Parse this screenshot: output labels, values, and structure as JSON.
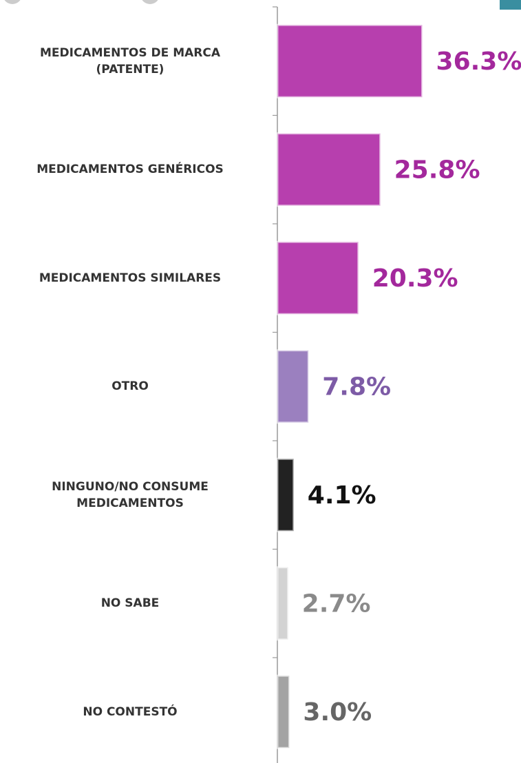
{
  "chart_data": {
    "type": "barh",
    "categories": [
      "MEDICAMENTOS DE MARCA\n(PATENTE)",
      "MEDICAMENTOS GENÉRICOS",
      "MEDICAMENTOS SIMILARES",
      "OTRO",
      "NINGUNO/NO CONSUME\nMEDICAMENTOS",
      "NO SABE",
      "NO CONTESTÓ"
    ],
    "values": [
      36.3,
      25.8,
      20.3,
      7.8,
      4.1,
      2.7,
      3.0
    ],
    "value_labels": [
      "36.3%",
      "25.8%",
      "20.3%",
      "7.8%",
      "4.1%",
      "2.7%",
      "3.0%"
    ],
    "colors": [
      "#b73fae",
      "#b73fae",
      "#b73fae",
      "#9b80bf",
      "#222222",
      "#d3d3d3",
      "#a3a3a3"
    ],
    "label_colors": [
      "#a3289c",
      "#a3289c",
      "#a3289c",
      "#7d5ba6",
      "#111111",
      "#8a8a8a",
      "#666666"
    ]
  }
}
